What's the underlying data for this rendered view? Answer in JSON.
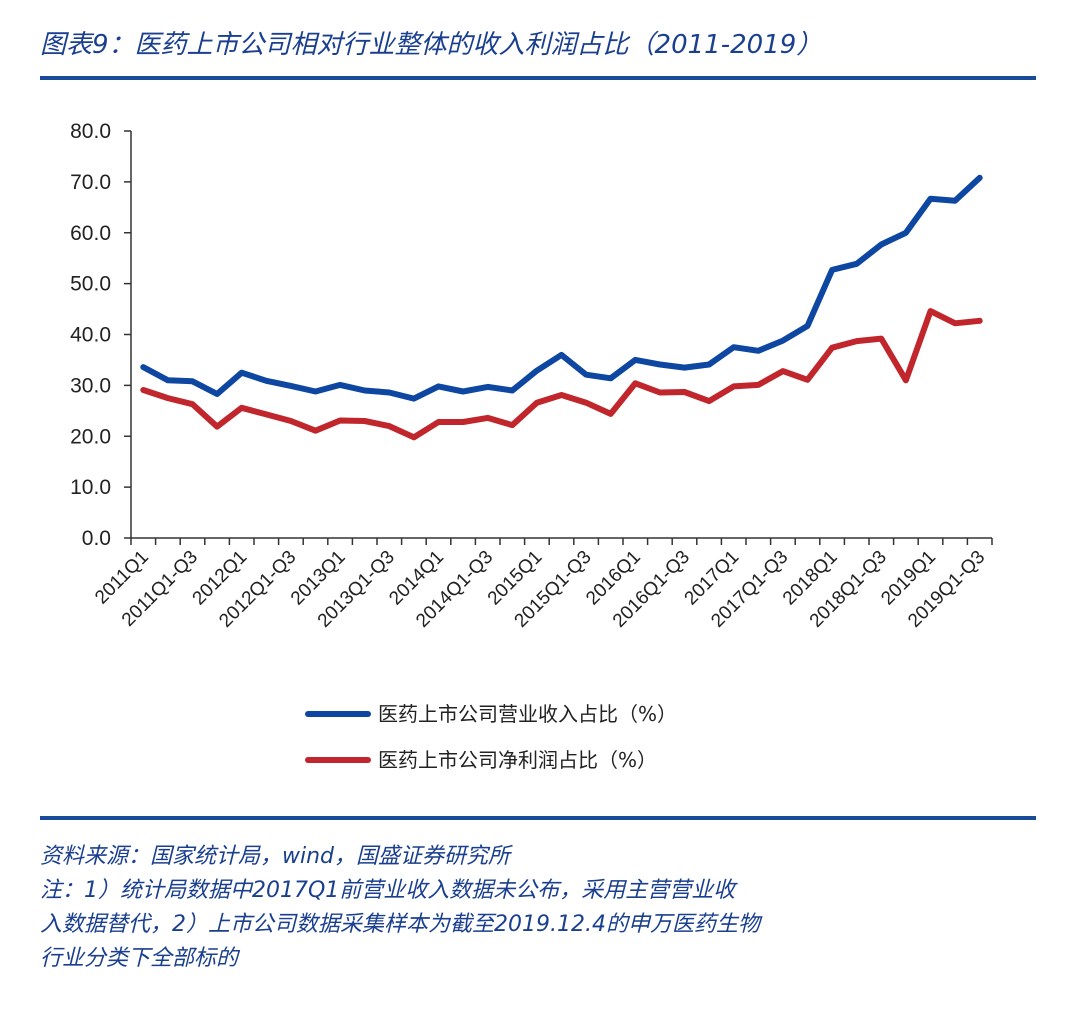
{
  "title": "图表9：医药上市公司相对行业整体的收入利润占比（2011-2019）",
  "chart_data": {
    "type": "line",
    "title": "",
    "xlabel": "",
    "ylabel": "",
    "ylim": [
      0,
      80
    ],
    "yticks": [
      "0.0",
      "10.0",
      "20.0",
      "30.0",
      "40.0",
      "50.0",
      "60.0",
      "70.0",
      "80.0"
    ],
    "x": [
      "2011Q1",
      "2011Q1-Q2",
      "2011Q1-Q3",
      "2011Q1-Q4",
      "2012Q1",
      "2012Q1-Q2",
      "2012Q1-Q3",
      "2012Q1-Q4",
      "2013Q1",
      "2013Q1-Q2",
      "2013Q1-Q3",
      "2013Q1-Q4",
      "2014Q1",
      "2014Q1-Q2",
      "2014Q1-Q3",
      "2014Q1-Q4",
      "2015Q1",
      "2015Q1-Q2",
      "2015Q1-Q3",
      "2015Q1-Q4",
      "2016Q1",
      "2016Q1-Q2",
      "2016Q1-Q3",
      "2016Q1-Q4",
      "2017Q1",
      "2017Q1-Q2",
      "2017Q1-Q3",
      "2017Q1-Q4",
      "2018Q1",
      "2018Q1-Q2",
      "2018Q1-Q3",
      "2018Q1-Q4",
      "2019Q1",
      "2019Q1-Q2",
      "2019Q1-Q3"
    ],
    "xtick_labels": [
      "2011Q1",
      "2011Q1-Q3",
      "2012Q1",
      "2012Q1-Q3",
      "2013Q1",
      "2013Q1-Q3",
      "2014Q1",
      "2014Q1-Q3",
      "2015Q1",
      "2015Q1-Q3",
      "2016Q1",
      "2016Q1-Q3",
      "2017Q1",
      "2017Q1-Q3",
      "2018Q1",
      "2018Q1-Q3",
      "2019Q1",
      "2019Q1-Q3"
    ],
    "series": [
      {
        "name": "医药上市公司营业收入占比（%）",
        "color": "#0d47a1",
        "values": [
          33.6,
          31.0,
          30.8,
          28.3,
          32.5,
          30.9,
          29.9,
          28.8,
          30.1,
          29.0,
          28.6,
          27.4,
          29.8,
          28.8,
          29.7,
          29.0,
          32.9,
          36.0,
          32.1,
          31.4,
          35.0,
          34.1,
          33.5,
          34.1,
          37.5,
          36.8,
          38.8,
          41.7,
          52.7,
          53.9,
          57.7,
          60.0,
          66.7,
          66.3,
          70.8
        ]
      },
      {
        "name": "医药上市公司净利润占比（%）",
        "color": "#c0262c",
        "values": [
          29.1,
          27.5,
          26.3,
          21.9,
          25.6,
          24.3,
          23.0,
          21.1,
          23.1,
          23.0,
          22.0,
          19.8,
          22.8,
          22.8,
          23.6,
          22.2,
          26.6,
          28.1,
          26.6,
          24.4,
          30.4,
          28.6,
          28.7,
          26.9,
          29.8,
          30.1,
          32.8,
          31.1,
          37.4,
          38.7,
          39.2,
          31.0,
          44.6,
          42.2,
          42.7
        ]
      }
    ],
    "legend_position": "bottom",
    "grid": false
  },
  "source_lines": [
    "资料来源：国家统计局，wind，国盛证券研究所",
    "注：1）统计局数据中2017Q1前营业收入数据未公布，采用主营营业收",
    "入数据替代，2）上市公司数据采集样本为截至2019.12.4的申万医药生物",
    "行业分类下全部标的"
  ]
}
